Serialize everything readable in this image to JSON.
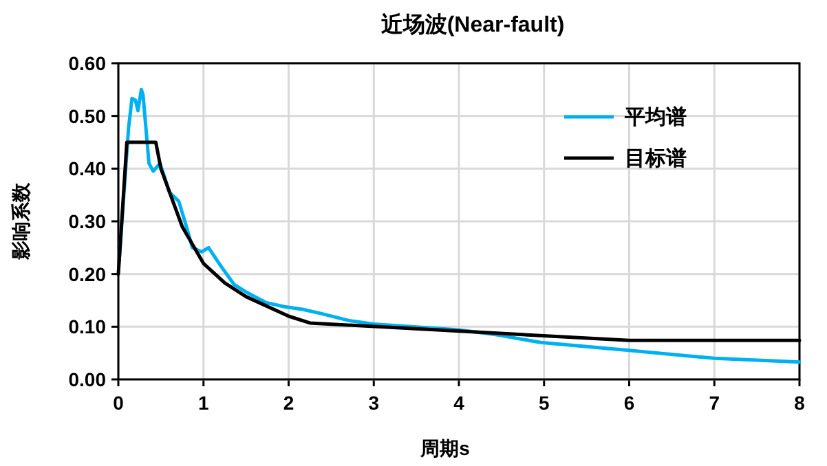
{
  "chart_data": {
    "type": "line",
    "title": "近场波(Near-fault)",
    "xlabel": "周期s",
    "ylabel": "影响系数",
    "xlim": [
      0,
      8
    ],
    "xticks": [
      0,
      1,
      2,
      3,
      4,
      5,
      6,
      7,
      8
    ],
    "ylim": [
      0,
      0.6
    ],
    "yticks": [
      {
        "value": 0,
        "label": "0.00"
      },
      {
        "value": 0.1,
        "label": "0.10"
      },
      {
        "value": 0.2,
        "label": "0.20"
      },
      {
        "value": 0.3,
        "label": "0.30"
      },
      {
        "value": 0.4,
        "label": "0.40"
      },
      {
        "value": 0.5,
        "label": "0.50"
      },
      {
        "value": 0.6,
        "label": "0.60"
      }
    ],
    "grid": true,
    "legend": "top right",
    "marker": "none",
    "line_style": "solid",
    "series": [
      {
        "name": "平均谱",
        "color": "#00b0f0",
        "x": [
          0.01,
          0.12,
          0.16,
          0.2,
          0.23,
          0.27,
          0.29,
          0.36,
          0.41,
          0.49,
          0.6,
          0.71,
          0.79,
          0.87,
          0.98,
          1.06,
          1.2,
          1.36,
          1.52,
          1.73,
          1.95,
          2.16,
          2.38,
          2.7,
          3.0,
          4.0,
          4.43,
          4.96,
          6.0,
          7.0,
          8.0
        ],
        "values": [
          0.225,
          0.477,
          0.533,
          0.53,
          0.51,
          0.55,
          0.54,
          0.41,
          0.395,
          0.41,
          0.355,
          0.338,
          0.295,
          0.25,
          0.242,
          0.25,
          0.216,
          0.18,
          0.164,
          0.146,
          0.138,
          0.133,
          0.125,
          0.112,
          0.105,
          0.094,
          0.085,
          0.07,
          0.055,
          0.04,
          0.033
        ]
      },
      {
        "name": "目标谱",
        "color": "#000000",
        "x": [
          0,
          0.1,
          0.44,
          0.5,
          0.75,
          1.0,
          1.25,
          1.5,
          2.0,
          2.25,
          6.0,
          8.0
        ],
        "values": [
          0.2,
          0.45,
          0.45,
          0.4,
          0.29,
          0.22,
          0.183,
          0.157,
          0.12,
          0.107,
          0.074,
          0.074
        ]
      }
    ]
  }
}
